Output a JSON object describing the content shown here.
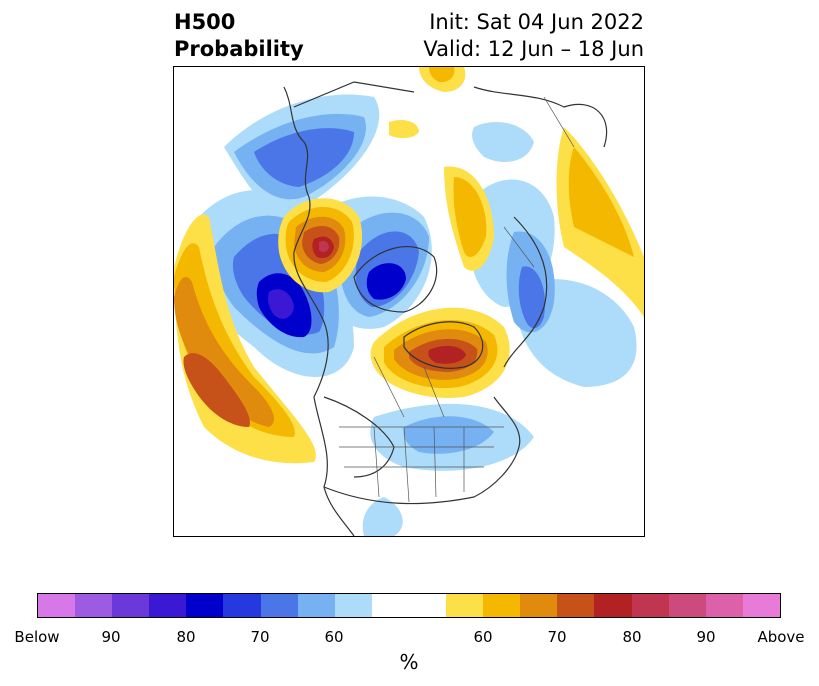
{
  "title": {
    "main": "H500",
    "sub": "Probability",
    "init": "Init: Sat 04 Jun 2022",
    "valid": "Valid: 12 Jun – 18 Jun"
  },
  "colorbar": {
    "below_colors": [
      "#d877e8",
      "#9d5ae3",
      "#6b38d9",
      "#3a18d4",
      "#0000cd",
      "#2639e0",
      "#4b76e8",
      "#76b2f2",
      "#acdcfa"
    ],
    "above_colors": [
      "#fde047",
      "#f4b800",
      "#e08a0e",
      "#c6521a",
      "#b22222",
      "#c03550",
      "#cc4a7c",
      "#dc61a8",
      "#e87ad8"
    ],
    "ticks": [
      "Below",
      "90",
      "80",
      "70",
      "60",
      "60",
      "70",
      "80",
      "90",
      "Above"
    ],
    "unit": "%"
  },
  "map": {
    "projection": "polar-stereographic",
    "region": "North America / Arctic"
  }
}
